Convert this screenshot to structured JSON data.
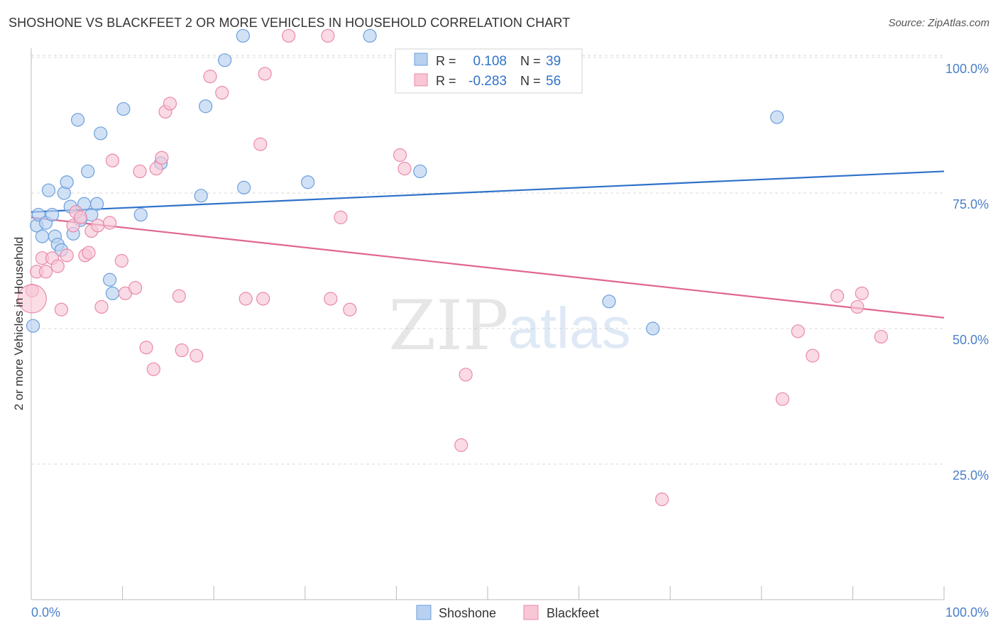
{
  "title": "SHOSHONE VS BLACKFEET 2 OR MORE VEHICLES IN HOUSEHOLD CORRELATION CHART",
  "source": "Source: ZipAtlas.com",
  "watermark": {
    "zip": "ZIP",
    "atlas": "atlas"
  },
  "colors": {
    "blue": "#6b9fdc",
    "blue_fill": "#b8d1f0",
    "blue_line": "#2f72c9",
    "pink": "#e98aa9",
    "pink_fill": "#f8c6d5",
    "pink_line": "#e0668f",
    "axis_text": "#4a7fc9",
    "grid": "#d8d8d8"
  },
  "legend": {
    "rows": [
      {
        "r_label": "R =",
        "r_value": "0.108",
        "n_label": "N =",
        "n_value": "39"
      },
      {
        "r_label": "R =",
        "r_value": "-0.283",
        "n_label": "N =",
        "n_value": "56"
      }
    ]
  },
  "chart_data": {
    "type": "scatter",
    "title": "SHOSHONE VS BLACKFEET 2 OR MORE VEHICLES IN HOUSEHOLD CORRELATION CHART",
    "xlabel": "",
    "ylabel": "2 or more Vehicles in Household",
    "xlim": [
      0,
      100
    ],
    "ylim": [
      0,
      105
    ],
    "x_tick_labels": [
      "0.0%",
      "100.0%"
    ],
    "y_ticks": [
      25,
      50,
      75,
      100
    ],
    "y_tick_labels": [
      "25.0%",
      "50.0%",
      "75.0%",
      "100.0%"
    ],
    "grid": true,
    "legend_position": "bottom",
    "series": [
      {
        "name": "Shoshone",
        "color": "#6b9fdc",
        "r": 0.108,
        "n": 39,
        "trend": [
          [
            0,
            71.5
          ],
          [
            100,
            79
          ]
        ],
        "points": [
          [
            0.2,
            50.5
          ],
          [
            0.6,
            69
          ],
          [
            0.8,
            71
          ],
          [
            1.2,
            67
          ],
          [
            1.6,
            69.5
          ],
          [
            1.9,
            75.5
          ],
          [
            2.3,
            71
          ],
          [
            2.6,
            67
          ],
          [
            2.9,
            65.5
          ],
          [
            3.3,
            64.5
          ],
          [
            3.6,
            75
          ],
          [
            3.9,
            77
          ],
          [
            4.3,
            72.5
          ],
          [
            4.6,
            67.5
          ],
          [
            5.1,
            88.5
          ],
          [
            5.4,
            70
          ],
          [
            5.8,
            73
          ],
          [
            6.2,
            79
          ],
          [
            6.6,
            71
          ],
          [
            7.2,
            73
          ],
          [
            7.6,
            86
          ],
          [
            8.6,
            59
          ],
          [
            8.9,
            56.5
          ],
          [
            10.1,
            90.5
          ],
          [
            12.0,
            71
          ],
          [
            14.2,
            80.5
          ],
          [
            18.6,
            74.5
          ],
          [
            19.1,
            91
          ],
          [
            21.2,
            99.5
          ],
          [
            23.2,
            104
          ],
          [
            23.3,
            76
          ],
          [
            30.3,
            77
          ],
          [
            37.1,
            104
          ],
          [
            42.6,
            79
          ],
          [
            63.3,
            55
          ],
          [
            68.1,
            50
          ],
          [
            81.7,
            89
          ]
        ]
      },
      {
        "name": "Blackfeet",
        "color": "#e98aa9",
        "r": -0.283,
        "n": 56,
        "trend": [
          [
            0,
            70.5
          ],
          [
            100,
            52
          ]
        ],
        "points": [
          [
            0.1,
            57
          ],
          [
            0.6,
            60.5
          ],
          [
            1.2,
            63
          ],
          [
            1.6,
            60.5
          ],
          [
            2.3,
            63
          ],
          [
            2.9,
            61.5
          ],
          [
            3.3,
            53.5
          ],
          [
            3.9,
            63.5
          ],
          [
            4.6,
            69
          ],
          [
            4.9,
            71.5
          ],
          [
            5.4,
            70.5
          ],
          [
            5.9,
            63.5
          ],
          [
            6.3,
            64
          ],
          [
            6.6,
            68
          ],
          [
            7.3,
            69
          ],
          [
            7.7,
            54
          ],
          [
            8.6,
            69.5
          ],
          [
            8.9,
            81
          ],
          [
            9.9,
            62.5
          ],
          [
            10.3,
            56.5
          ],
          [
            11.4,
            57.5
          ],
          [
            11.9,
            79
          ],
          [
            12.6,
            46.5
          ],
          [
            13.4,
            42.5
          ],
          [
            13.7,
            79.5
          ],
          [
            14.3,
            81.5
          ],
          [
            14.7,
            90
          ],
          [
            15.2,
            91.5
          ],
          [
            16.2,
            56
          ],
          [
            16.5,
            46
          ],
          [
            18.1,
            45
          ],
          [
            19.6,
            96.5
          ],
          [
            20.9,
            93.5
          ],
          [
            23.5,
            55.5
          ],
          [
            25.1,
            84
          ],
          [
            25.4,
            55.5
          ],
          [
            25.6,
            97
          ],
          [
            28.2,
            104
          ],
          [
            32.5,
            104
          ],
          [
            32.8,
            55.5
          ],
          [
            33.9,
            70.5
          ],
          [
            34.9,
            53.5
          ],
          [
            40.4,
            82
          ],
          [
            40.9,
            79.5
          ],
          [
            47.1,
            28.5
          ],
          [
            47.6,
            41.5
          ],
          [
            69.1,
            18.5
          ],
          [
            82.3,
            37
          ],
          [
            84.0,
            49.5
          ],
          [
            85.6,
            45
          ],
          [
            88.3,
            56
          ],
          [
            90.5,
            54
          ],
          [
            91.0,
            56.5
          ],
          [
            93.1,
            48.5
          ]
        ]
      }
    ]
  },
  "bottom_legend": [
    {
      "label": "Shoshone"
    },
    {
      "label": "Blackfeet"
    }
  ]
}
